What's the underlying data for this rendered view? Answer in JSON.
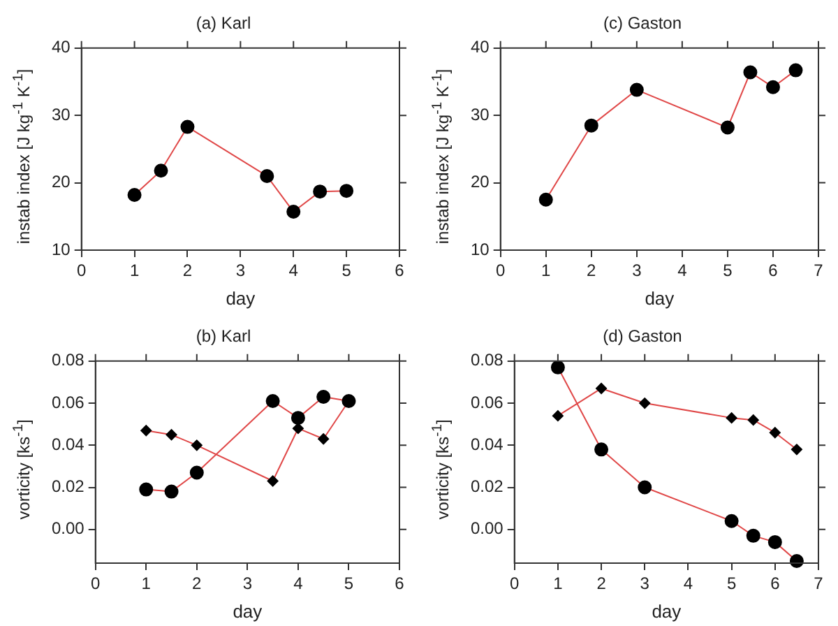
{
  "chart_data": [
    {
      "type": "line",
      "title": "(a) Karl",
      "xlabel": "day",
      "ylabel": "instab index  [J kg$^{-1}$ K$^{-1}$]",
      "xlim": [
        0,
        6
      ],
      "xticks": [
        0,
        1,
        2,
        3,
        4,
        5,
        6
      ],
      "ylim": [
        10,
        40
      ],
      "yticks": [
        10,
        20,
        30,
        40
      ],
      "grid": false,
      "legend": false,
      "line_style": "solid",
      "series": [
        {
          "color": "#e04848",
          "marker": "circle",
          "x": [
            1,
            1.5,
            2,
            3.5,
            4,
            4.5,
            5
          ],
          "values": [
            18.2,
            21.8,
            28.3,
            21.0,
            15.7,
            18.7,
            18.8
          ]
        }
      ]
    },
    {
      "type": "line",
      "title": "(c) Gaston",
      "xlabel": "day",
      "ylabel": "instab index  [J kg$^{-1}$ K$^{-1}$]",
      "xlim": [
        0,
        7
      ],
      "xticks": [
        0,
        1,
        2,
        3,
        4,
        5,
        6,
        7
      ],
      "ylim": [
        10,
        40
      ],
      "yticks": [
        10,
        20,
        30,
        40
      ],
      "grid": false,
      "legend": false,
      "line_style": "solid",
      "series": [
        {
          "color": "#e04848",
          "marker": "circle",
          "x": [
            1,
            2,
            3,
            5,
            5.5,
            6,
            6.5
          ],
          "values": [
            17.5,
            28.5,
            33.8,
            28.2,
            36.4,
            34.2,
            36.7
          ]
        }
      ]
    },
    {
      "type": "line",
      "title": "(b) Karl",
      "xlabel": "day",
      "ylabel": "vorticity  [ks$^{-1}$]",
      "xlim": [
        0,
        6
      ],
      "xticks": [
        0,
        1,
        2,
        3,
        4,
        5,
        6
      ],
      "ylim": [
        -0.016,
        0.08
      ],
      "yticks": [
        {
          "value": 0,
          "label": "0.00"
        },
        {
          "value": 0.02,
          "label": "0.02"
        },
        {
          "value": 0.04,
          "label": "0.04"
        },
        {
          "value": 0.06,
          "label": "0.06"
        },
        {
          "value": 0.08,
          "label": "0.08"
        }
      ],
      "grid": false,
      "legend": false,
      "line_style": "solid",
      "series": [
        {
          "color": "#e04848",
          "marker": "circle",
          "x": [
            1,
            1.5,
            2,
            3.5,
            4,
            4.5,
            5
          ],
          "values": [
            0.019,
            0.018,
            0.027,
            0.061,
            0.053,
            0.063,
            0.061
          ]
        },
        {
          "color": "#e04848",
          "marker": "diamond",
          "x": [
            1,
            1.5,
            2,
            3.5,
            4,
            4.5,
            5
          ],
          "values": [
            0.047,
            0.045,
            0.04,
            0.023,
            0.048,
            0.043,
            0.061
          ]
        }
      ]
    },
    {
      "type": "line",
      "title": "(d) Gaston",
      "xlabel": "day",
      "ylabel": "vorticity  [ks$^{-1}$]",
      "xlim": [
        0,
        7
      ],
      "xticks": [
        0,
        1,
        2,
        3,
        4,
        5,
        6,
        7
      ],
      "ylim": [
        -0.016,
        0.08
      ],
      "yticks": [
        {
          "value": 0,
          "label": "0.00"
        },
        {
          "value": 0.02,
          "label": "0.02"
        },
        {
          "value": 0.04,
          "label": "0.04"
        },
        {
          "value": 0.06,
          "label": "0.06"
        },
        {
          "value": 0.08,
          "label": "0.08"
        }
      ],
      "grid": false,
      "legend": false,
      "line_style": "solid",
      "series": [
        {
          "color": "#e04848",
          "marker": "circle",
          "x": [
            1,
            2,
            3,
            5,
            5.5,
            6,
            6.5
          ],
          "values": [
            0.077,
            0.038,
            0.02,
            0.004,
            -0.003,
            -0.006,
            -0.015
          ]
        },
        {
          "color": "#e04848",
          "marker": "diamond",
          "x": [
            1,
            2,
            3,
            5,
            5.5,
            6,
            6.5
          ],
          "values": [
            0.054,
            0.067,
            0.06,
            0.053,
            0.052,
            0.046,
            0.038
          ]
        }
      ]
    }
  ]
}
